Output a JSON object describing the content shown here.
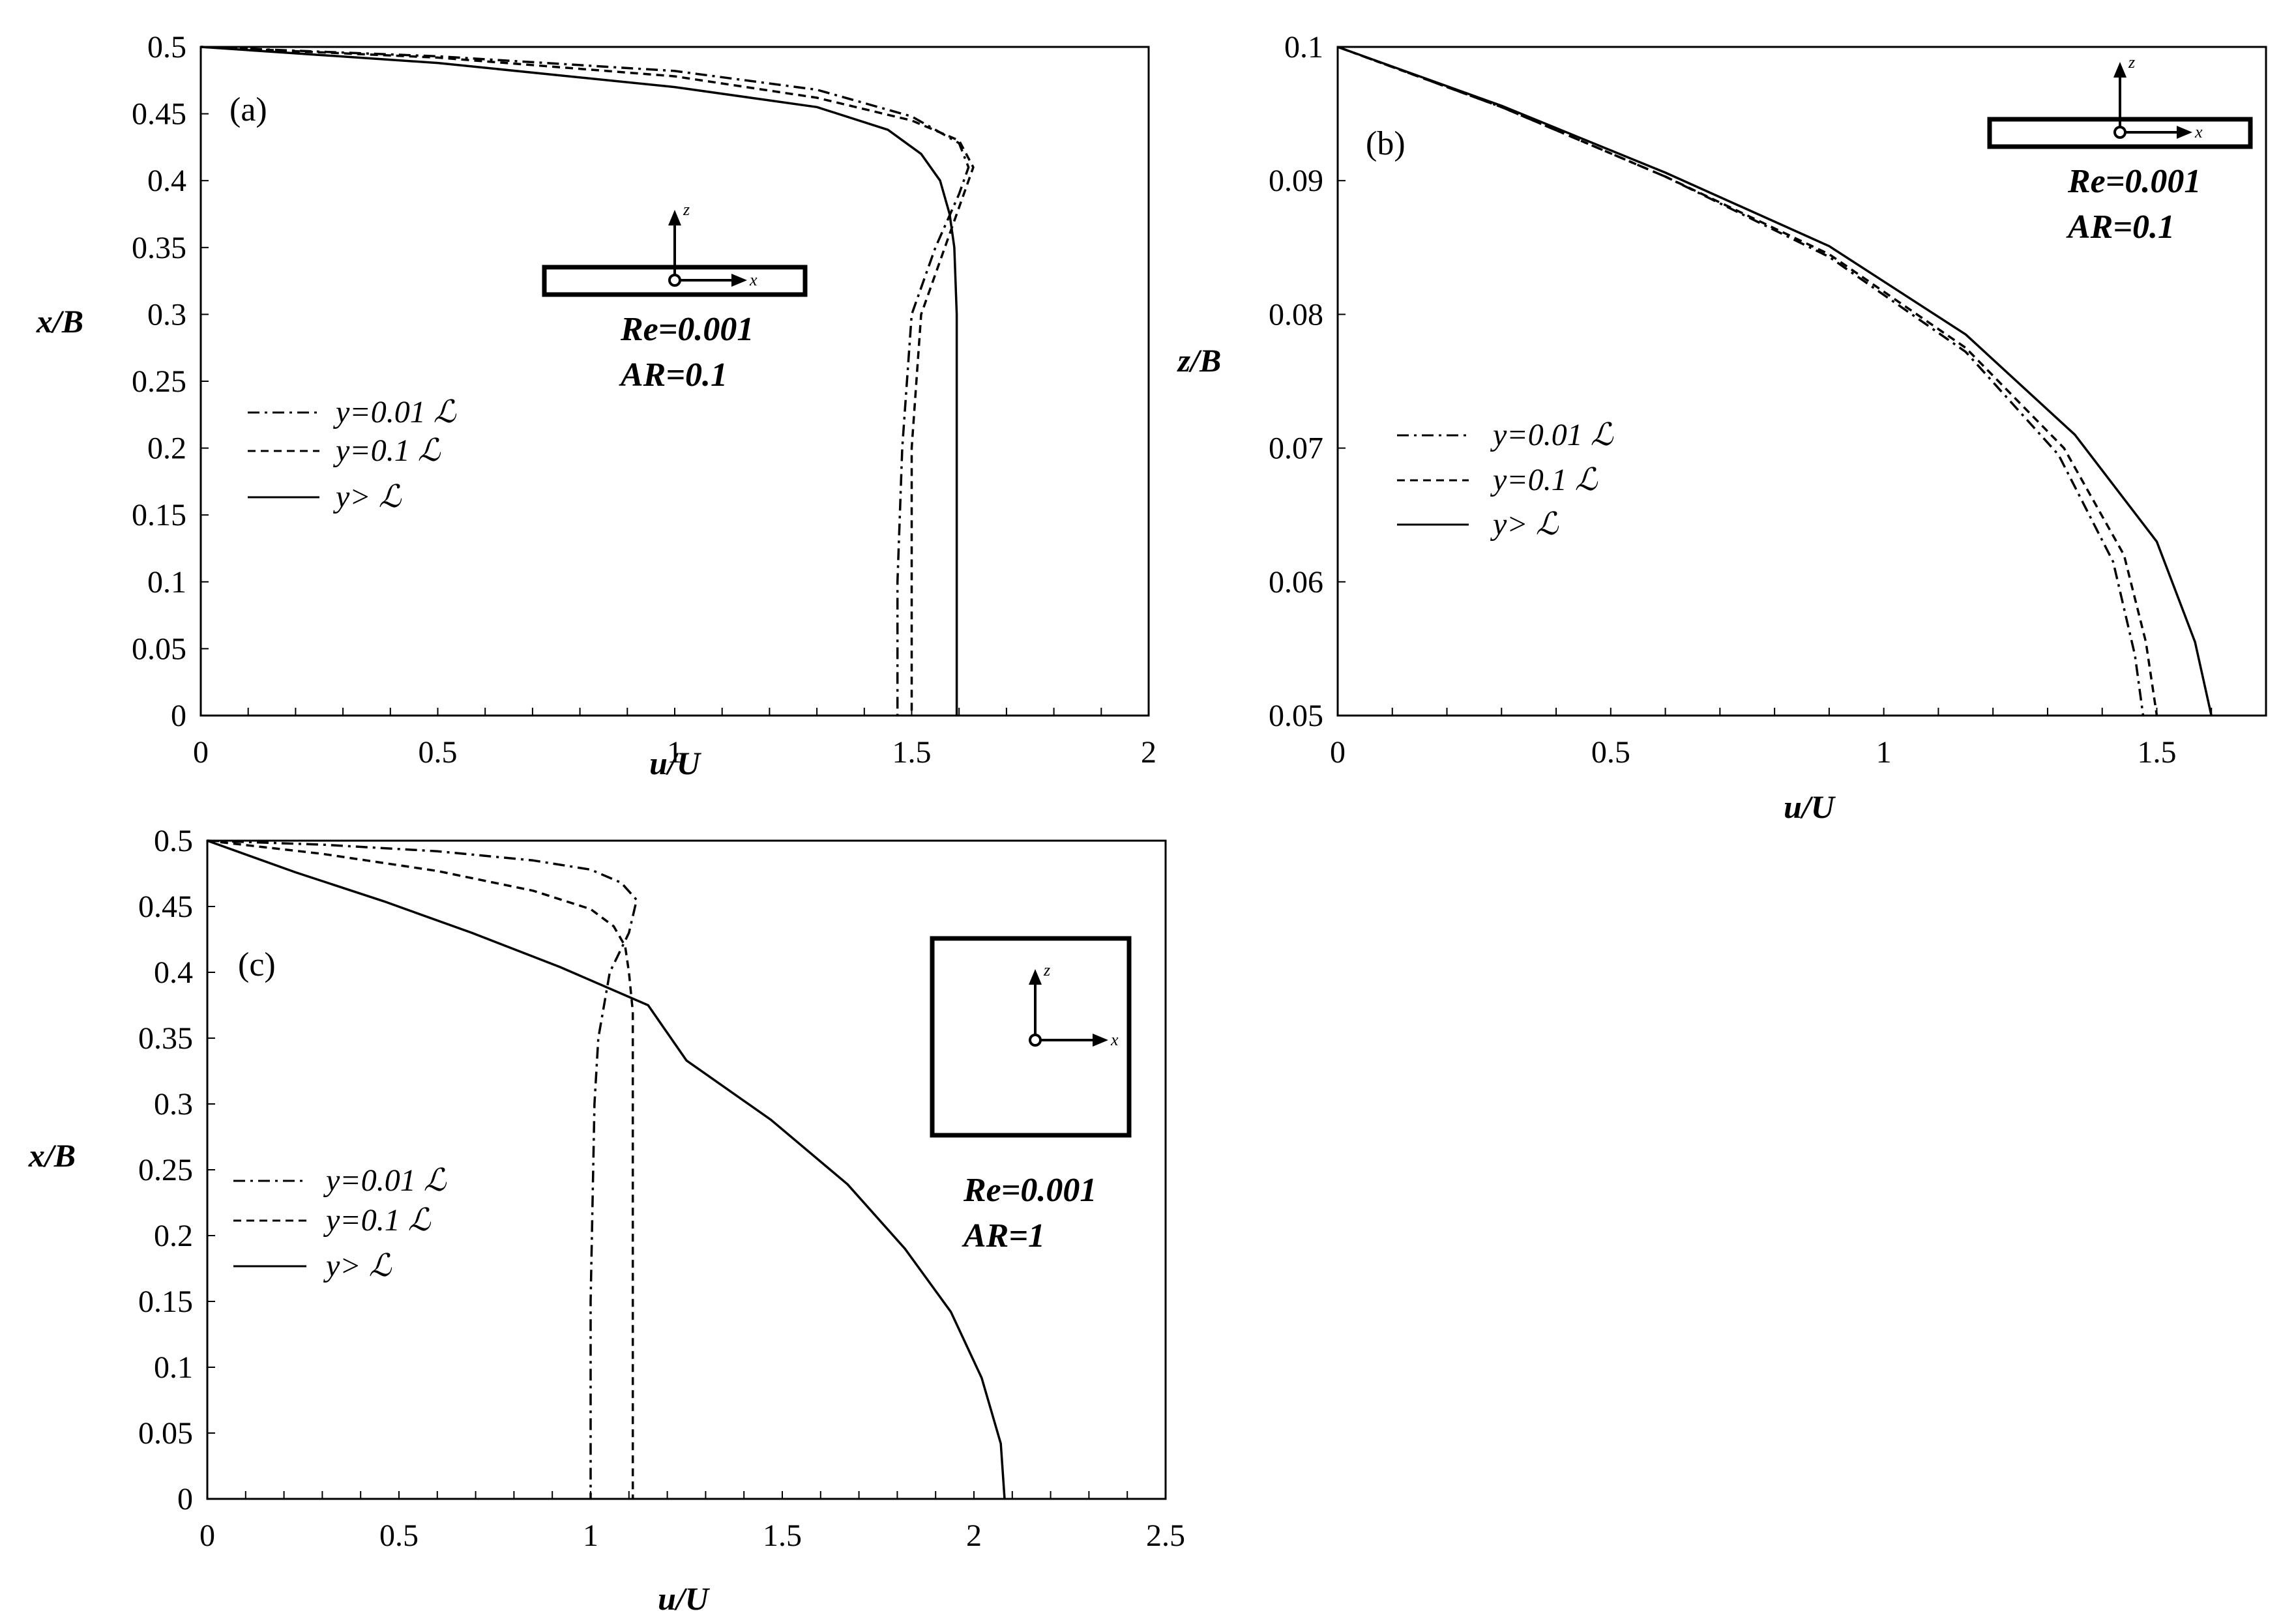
{
  "chart_data": [
    {
      "type": "line",
      "panel_label": "(a)",
      "xlabel": "u/U",
      "ylabel": "x/B",
      "xlim": [
        0,
        2
      ],
      "ylim": [
        0,
        0.5
      ],
      "xticks": [
        "0",
        "0.5",
        "1",
        "1.5",
        "2"
      ],
      "yticks": [
        "0",
        "0.05",
        "0.1",
        "0.15",
        "0.2",
        "0.25",
        "0.3",
        "0.35",
        "0.4",
        "0.45",
        "0.5"
      ],
      "legend_position": "left",
      "annotations": [
        "Re=0.001",
        "AR=0.1"
      ],
      "inset_axes": [
        "z",
        "x"
      ],
      "series": [
        {
          "name": "y=0.01 ℒ",
          "style": "dashdot",
          "x": [
            0,
            0.5,
            1.0,
            1.3,
            1.5,
            1.6,
            1.62,
            1.6,
            1.55,
            1.5,
            1.48,
            1.47,
            1.47
          ],
          "y": [
            0.5,
            0.493,
            0.482,
            0.468,
            0.448,
            0.428,
            0.41,
            0.39,
            0.35,
            0.3,
            0.2,
            0.1,
            0
          ]
        },
        {
          "name": "y=0.1 ℒ",
          "style": "dashed",
          "x": [
            0,
            0.5,
            1.0,
            1.3,
            1.5,
            1.6,
            1.63,
            1.6,
            1.56,
            1.52,
            1.5,
            1.5,
            1.5
          ],
          "y": [
            0.5,
            0.492,
            0.478,
            0.462,
            0.445,
            0.43,
            0.41,
            0.38,
            0.34,
            0.3,
            0.2,
            0.1,
            0
          ]
        },
        {
          "name": "y> ℒ",
          "style": "solid",
          "x": [
            0,
            0.5,
            1.0,
            1.3,
            1.45,
            1.52,
            1.56,
            1.58,
            1.59,
            1.595,
            1.595
          ],
          "y": [
            0.5,
            0.488,
            0.47,
            0.455,
            0.438,
            0.42,
            0.4,
            0.375,
            0.35,
            0.3,
            0
          ]
        }
      ]
    },
    {
      "type": "line",
      "panel_label": "(b)",
      "xlabel": "u/U",
      "ylabel": "z/B",
      "xlim": [
        0,
        1.7
      ],
      "ylim": [
        0.05,
        0.1
      ],
      "xticks": [
        "0",
        "0.5",
        "1",
        "1.5"
      ],
      "yticks": [
        "0.05",
        "0.06",
        "0.07",
        "0.08",
        "0.09",
        "0.1"
      ],
      "legend_position": "left",
      "annotations": [
        "Re=0.001",
        "AR=0.1"
      ],
      "inset_axes": [
        "z",
        "x"
      ],
      "series": [
        {
          "name": "y=0.01 ℒ",
          "style": "dashdot",
          "x": [
            0,
            0.3,
            0.6,
            0.9,
            1.15,
            1.32,
            1.42,
            1.46,
            1.475
          ],
          "y": [
            0.1,
            0.0955,
            0.0903,
            0.0843,
            0.0772,
            0.0695,
            0.0615,
            0.0545,
            0.05
          ]
        },
        {
          "name": "y=0.1 ℒ",
          "style": "dashed",
          "x": [
            0,
            0.3,
            0.6,
            0.9,
            1.15,
            1.33,
            1.44,
            1.48,
            1.5
          ],
          "y": [
            0.1,
            0.0955,
            0.0903,
            0.0845,
            0.0775,
            0.07,
            0.062,
            0.0555,
            0.05
          ]
        },
        {
          "name": "y> ℒ",
          "style": "solid",
          "x": [
            0,
            0.3,
            0.6,
            0.9,
            1.15,
            1.35,
            1.5,
            1.57,
            1.6
          ],
          "y": [
            0.1,
            0.0956,
            0.0906,
            0.0851,
            0.0785,
            0.071,
            0.063,
            0.0555,
            0.05
          ]
        }
      ]
    },
    {
      "type": "line",
      "panel_label": "(c)",
      "xlabel": "u/U",
      "ylabel": "x/B",
      "xlim": [
        0,
        2.5
      ],
      "ylim": [
        0,
        0.5
      ],
      "xticks": [
        "0",
        "0.5",
        "1",
        "1.5",
        "2",
        "2.5"
      ],
      "yticks": [
        "0",
        "0.05",
        "0.1",
        "0.15",
        "0.2",
        "0.25",
        "0.3",
        "0.35",
        "0.4",
        "0.45",
        "0.5"
      ],
      "legend_position": "left",
      "annotations": [
        "Re=0.001",
        "AR=1"
      ],
      "inset_axes": [
        "z",
        "x"
      ],
      "series": [
        {
          "name": "y=0.01 ℒ",
          "style": "dashdot",
          "x": [
            0,
            0.3,
            0.6,
            0.85,
            1.0,
            1.08,
            1.12,
            1.1,
            1.05,
            1.02,
            1.01,
            1.0,
            1.0
          ],
          "y": [
            0.5,
            0.497,
            0.492,
            0.485,
            0.478,
            0.468,
            0.455,
            0.43,
            0.4,
            0.35,
            0.3,
            0.15,
            0
          ]
        },
        {
          "name": "y=0.1 ℒ",
          "style": "dashed",
          "x": [
            0,
            0.3,
            0.6,
            0.85,
            1.0,
            1.06,
            1.09,
            1.1,
            1.11,
            1.11,
            1.11
          ],
          "y": [
            0.5,
            0.49,
            0.477,
            0.462,
            0.448,
            0.435,
            0.42,
            0.4,
            0.37,
            0.3,
            0
          ]
        },
        {
          "name": "y> ℒ",
          "style": "solid",
          "x": [
            0,
            0.23,
            0.46,
            0.69,
            0.92,
            1.15,
            1.25,
            1.47,
            1.67,
            1.82,
            1.94,
            2.02,
            2.07,
            2.08
          ],
          "y": [
            0.5,
            0.476,
            0.454,
            0.43,
            0.404,
            0.375,
            0.333,
            0.288,
            0.239,
            0.19,
            0.142,
            0.092,
            0.042,
            0
          ]
        }
      ]
    }
  ]
}
